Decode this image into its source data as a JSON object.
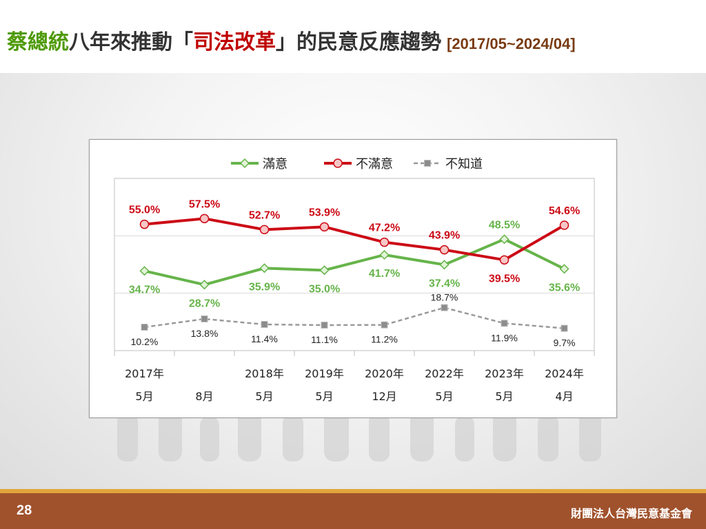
{
  "slide": {
    "title_part1": "蔡總統",
    "title_part2": "八年來推動「",
    "title_part3": "司法改革",
    "title_part4": "」的民意反應趨勢",
    "title_range": "[2017/05~2024/04]",
    "page_number": "28",
    "organization": "財團法人台灣民意基金會"
  },
  "colors": {
    "satisfied": "#66b44a",
    "dissatisfied": "#cc0a16",
    "unknown": "#999999",
    "title_accent_green": "#4e9a06",
    "title_accent_red": "#c00000",
    "footer": "#a0522d",
    "footer_line": "#e2a43a"
  },
  "chart_data": {
    "type": "line",
    "categories": [
      [
        "2017年",
        "5月"
      ],
      [
        "",
        "8月"
      ],
      [
        "2018年",
        "5月"
      ],
      [
        "2019年",
        "5月"
      ],
      [
        "2020年",
        "12月"
      ],
      [
        "2022年",
        "5月"
      ],
      [
        "2023年",
        "5月"
      ],
      [
        "2024年",
        "4月"
      ]
    ],
    "series": [
      {
        "name": "滿意",
        "marker": "diamond",
        "values": [
          34.7,
          28.7,
          35.9,
          35.0,
          41.7,
          37.4,
          48.5,
          35.6
        ],
        "labels": [
          "34.7%",
          "28.7%",
          "35.9%",
          "35.0%",
          "41.7%",
          "37.4%",
          "48.5%",
          "35.6%"
        ],
        "label_pos": [
          "below",
          "below",
          "below",
          "below",
          "below",
          "below",
          "above",
          "below"
        ]
      },
      {
        "name": "不滿意",
        "marker": "circle",
        "values": [
          55.0,
          57.5,
          52.7,
          53.9,
          47.2,
          43.9,
          39.5,
          54.6
        ],
        "labels": [
          "55.0%",
          "57.5%",
          "52.7%",
          "53.9%",
          "47.2%",
          "43.9%",
          "39.5%",
          "54.6%"
        ],
        "label_pos": [
          "above",
          "above",
          "above",
          "above",
          "above",
          "above",
          "below",
          "above"
        ]
      },
      {
        "name": "不知道",
        "marker": "square",
        "dashed": true,
        "values": [
          10.2,
          13.8,
          11.4,
          11.1,
          11.2,
          18.7,
          11.9,
          9.7
        ],
        "labels": [
          "10.2%",
          "13.8%",
          "11.4%",
          "11.1%",
          "11.2%",
          "18.7%",
          "11.9%",
          "9.7%"
        ],
        "label_pos": [
          "below",
          "below",
          "below",
          "below",
          "below",
          "above",
          "below",
          "below"
        ]
      }
    ],
    "ylim": [
      0,
      75
    ],
    "grid": true,
    "legend_position": "top-center",
    "title": "",
    "xlabel": "",
    "ylabel": ""
  }
}
